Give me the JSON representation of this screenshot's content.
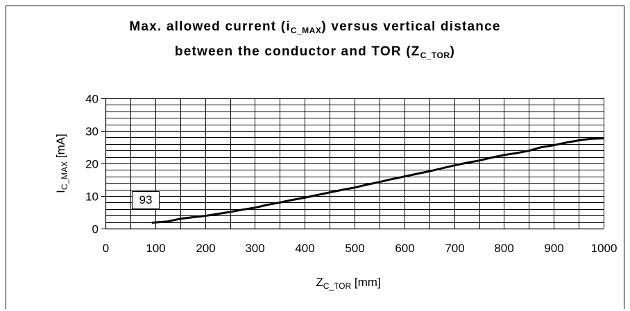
{
  "chart_data": {
    "type": "line",
    "title": {
      "line1_prefix": "Max. allowed current (i",
      "line1_sub": "C_MAX",
      "line1_suffix": ") versus vertical distance",
      "line2_prefix": "between the conductor and TOR (Z",
      "line2_sub": "C_TOR",
      "line2_suffix": ")"
    },
    "xlabel": {
      "main": "Z",
      "sub": "C_TOR",
      "unit": " [mm]"
    },
    "ylabel": {
      "main": "I",
      "sub": "C_MAX",
      "unit": " [mA]"
    },
    "xlim": [
      0,
      1000
    ],
    "ylim": [
      0,
      40
    ],
    "x_ticks": [
      0,
      100,
      200,
      300,
      400,
      500,
      600,
      700,
      800,
      900,
      1000
    ],
    "y_ticks": [
      0,
      10,
      20,
      30,
      40
    ],
    "grid": true,
    "legend": "none",
    "line_color": "#000000",
    "annotation": {
      "text": "93",
      "x": 93
    },
    "x": [
      93,
      100,
      125,
      150,
      175,
      200,
      225,
      250,
      275,
      300,
      325,
      350,
      375,
      400,
      425,
      450,
      475,
      500,
      525,
      550,
      575,
      600,
      625,
      650,
      675,
      700,
      725,
      750,
      775,
      800,
      825,
      850,
      875,
      900,
      925,
      950,
      975,
      1000
    ],
    "y": [
      1.8,
      1.9,
      2.2,
      3.0,
      3.5,
      3.9,
      4.5,
      5.1,
      5.8,
      6.4,
      7.3,
      8.0,
      8.8,
      9.5,
      10.3,
      11.1,
      11.9,
      12.6,
      13.5,
      14.3,
      15.2,
      16.0,
      16.8,
      17.6,
      18.5,
      19.4,
      20.2,
      20.9,
      21.8,
      22.6,
      23.2,
      23.9,
      25.0,
      25.6,
      26.4,
      27.1,
      27.6,
      27.7
    ]
  }
}
